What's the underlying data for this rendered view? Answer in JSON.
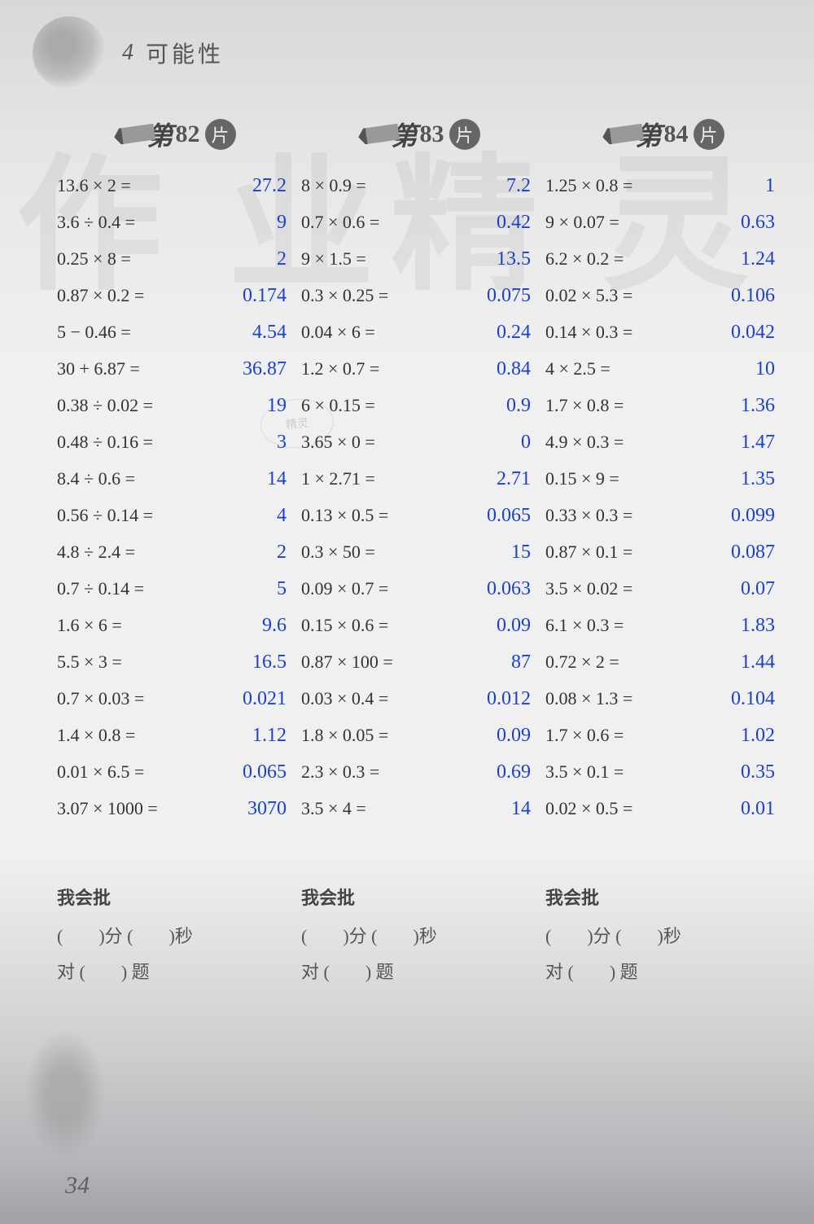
{
  "header": {
    "chapter_num": "4",
    "chapter_title": "可能性"
  },
  "watermark": {
    "text1": "作业",
    "text2": "精灵"
  },
  "seal_text": "精灵",
  "columns": [
    {
      "di": "第",
      "num": "82",
      "pian": "片",
      "problems": [
        {
          "expr": "13.6 × 2 =",
          "ans": "27.2"
        },
        {
          "expr": "3.6 ÷ 0.4 =",
          "ans": "9"
        },
        {
          "expr": "0.25 × 8 =",
          "ans": "2"
        },
        {
          "expr": "0.87 × 0.2 =",
          "ans": "0.174"
        },
        {
          "expr": "5 − 0.46 =",
          "ans": "4.54"
        },
        {
          "expr": "30 + 6.87 =",
          "ans": "36.87"
        },
        {
          "expr": "0.38 ÷ 0.02 =",
          "ans": "19"
        },
        {
          "expr": "0.48 ÷ 0.16 =",
          "ans": "3"
        },
        {
          "expr": "8.4 ÷ 0.6 =",
          "ans": "14"
        },
        {
          "expr": "0.56 ÷ 0.14 =",
          "ans": "4"
        },
        {
          "expr": "4.8 ÷ 2.4 =",
          "ans": "2"
        },
        {
          "expr": "0.7 ÷ 0.14 =",
          "ans": "5"
        },
        {
          "expr": "1.6 × 6 =",
          "ans": "9.6"
        },
        {
          "expr": "5.5 × 3 =",
          "ans": "16.5"
        },
        {
          "expr": "0.7 × 0.03 =",
          "ans": "0.021"
        },
        {
          "expr": "1.4 × 0.8 =",
          "ans": "1.12"
        },
        {
          "expr": "0.01 × 6.5 =",
          "ans": "0.065"
        },
        {
          "expr": "3.07 × 1000 =",
          "ans": "3070"
        }
      ],
      "footer": {
        "title": "我会批",
        "line1": "(　　)分 (　　)秒",
        "line2": "对 (　　) 题"
      }
    },
    {
      "di": "第",
      "num": "83",
      "pian": "片",
      "problems": [
        {
          "expr": "8 × 0.9 =",
          "ans": "7.2"
        },
        {
          "expr": "0.7 × 0.6 =",
          "ans": "0.42"
        },
        {
          "expr": "9 × 1.5 =",
          "ans": "13.5"
        },
        {
          "expr": "0.3 × 0.25 =",
          "ans": "0.075"
        },
        {
          "expr": "0.04 × 6 =",
          "ans": "0.24"
        },
        {
          "expr": "1.2 × 0.7 =",
          "ans": "0.84"
        },
        {
          "expr": "6 × 0.15 =",
          "ans": "0.9"
        },
        {
          "expr": "3.65 × 0 =",
          "ans": "0"
        },
        {
          "expr": "1 × 2.71 =",
          "ans": "2.71"
        },
        {
          "expr": "0.13 × 0.5 =",
          "ans": "0.065"
        },
        {
          "expr": "0.3 × 50 =",
          "ans": "15"
        },
        {
          "expr": "0.09 × 0.7 =",
          "ans": "0.063"
        },
        {
          "expr": "0.15 × 0.6 =",
          "ans": "0.09"
        },
        {
          "expr": "0.87 × 100 =",
          "ans": "87"
        },
        {
          "expr": "0.03 × 0.4 =",
          "ans": "0.012"
        },
        {
          "expr": "1.8 × 0.05 =",
          "ans": "0.09"
        },
        {
          "expr": "2.3 × 0.3 =",
          "ans": "0.69"
        },
        {
          "expr": "3.5 × 4 =",
          "ans": "14"
        }
      ],
      "footer": {
        "title": "我会批",
        "line1": "(　　)分 (　　)秒",
        "line2": "对 (　　) 题"
      }
    },
    {
      "di": "第",
      "num": "84",
      "pian": "片",
      "problems": [
        {
          "expr": "1.25 × 0.8 =",
          "ans": "1"
        },
        {
          "expr": "9 × 0.07 =",
          "ans": "0.63"
        },
        {
          "expr": "6.2 × 0.2 =",
          "ans": "1.24"
        },
        {
          "expr": "0.02 × 5.3 =",
          "ans": "0.106"
        },
        {
          "expr": "0.14 × 0.3 =",
          "ans": "0.042"
        },
        {
          "expr": "4 × 2.5 =",
          "ans": "10"
        },
        {
          "expr": "1.7 × 0.8 =",
          "ans": "1.36"
        },
        {
          "expr": "4.9 × 0.3 =",
          "ans": "1.47"
        },
        {
          "expr": "0.15 × 9 =",
          "ans": "1.35"
        },
        {
          "expr": "0.33 × 0.3 =",
          "ans": "0.099"
        },
        {
          "expr": "0.87 × 0.1 =",
          "ans": "0.087"
        },
        {
          "expr": "3.5 × 0.02 =",
          "ans": "0.07"
        },
        {
          "expr": "6.1 × 0.3 =",
          "ans": "1.83"
        },
        {
          "expr": "0.72 × 2 =",
          "ans": "1.44"
        },
        {
          "expr": "0.08 × 1.3 =",
          "ans": "0.104"
        },
        {
          "expr": "1.7 × 0.6 =",
          "ans": "1.02"
        },
        {
          "expr": "3.5 × 0.1 =",
          "ans": "0.35"
        },
        {
          "expr": "0.02 × 0.5 =",
          "ans": "0.01"
        }
      ],
      "footer": {
        "title": "我会批",
        "line1": "(　　)分 (　　)秒",
        "line2": "对 (　　) 题"
      }
    }
  ],
  "page_number": "34"
}
